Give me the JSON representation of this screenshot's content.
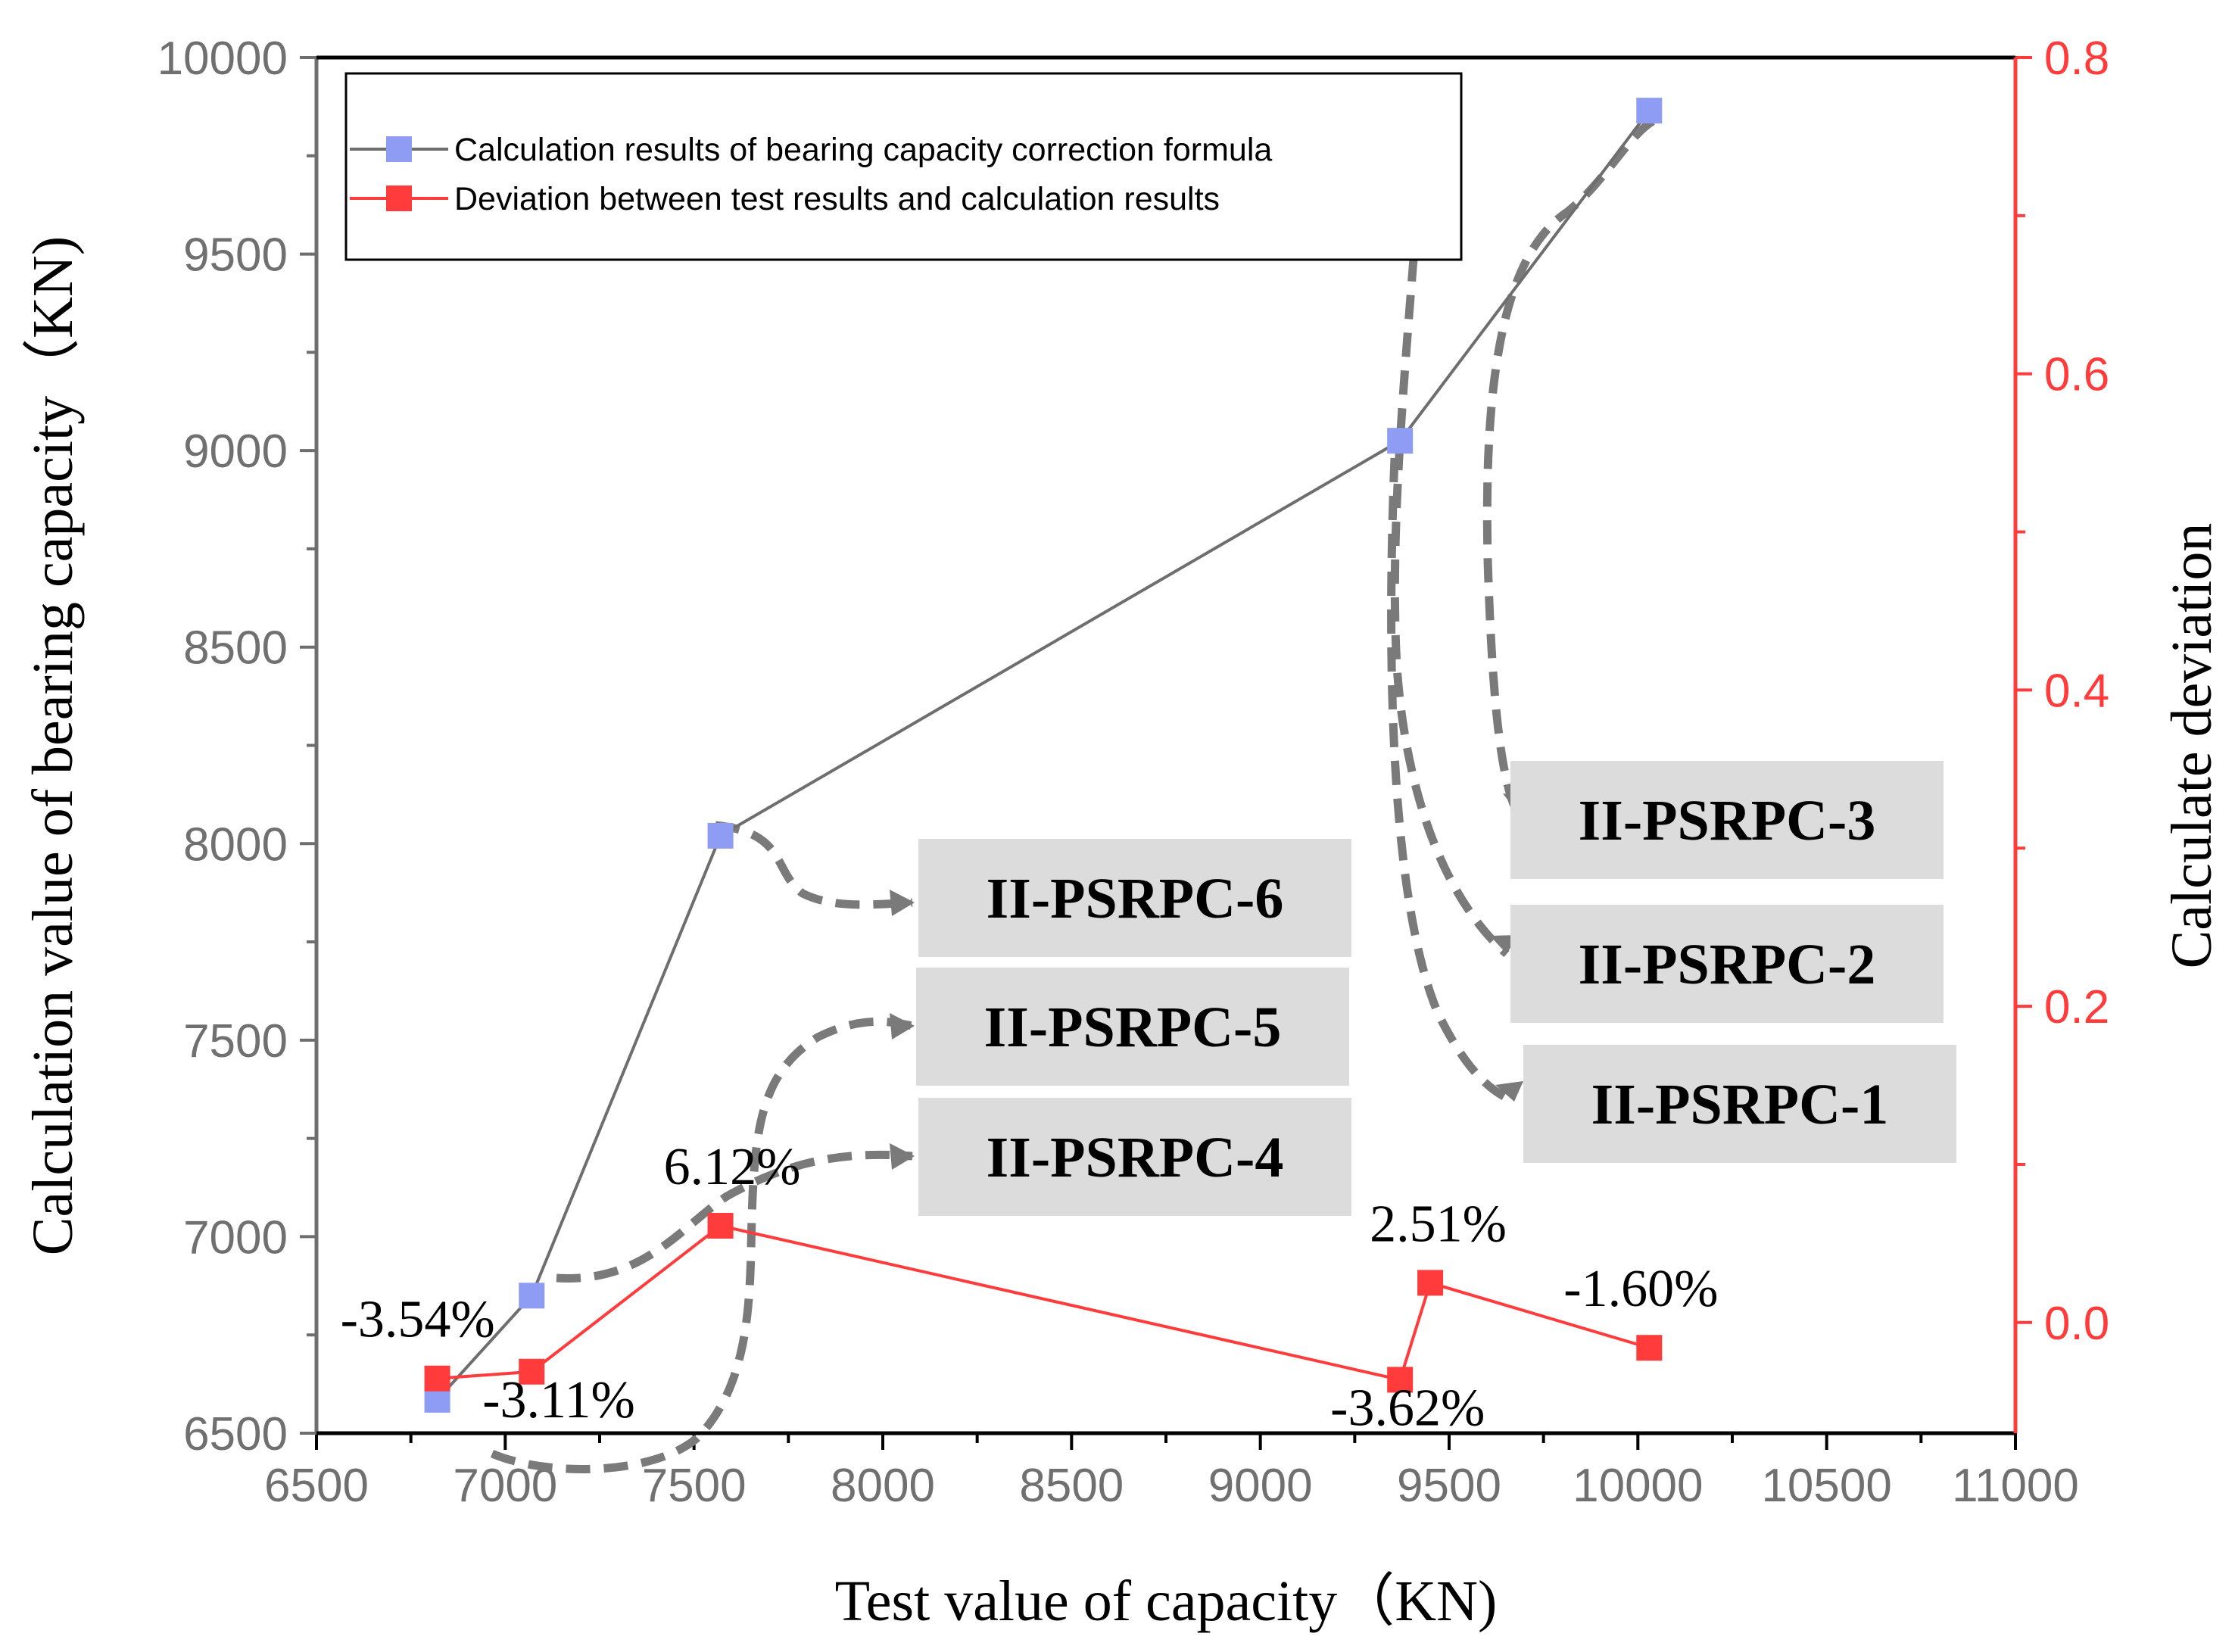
{
  "chart_data": {
    "type": "line",
    "xlabel": "Test value of capacity（KN)",
    "ylabel": "Calculation value of bearing capacity（KN)",
    "y2label": "Calculate deviation",
    "xlim": [
      6500,
      11000
    ],
    "ylim": [
      6500,
      10000
    ],
    "y2lim": [
      -0.07,
      0.8
    ],
    "x_ticks": [
      "6500",
      "7000",
      "7500",
      "8000",
      "8500",
      "9000",
      "9500",
      "10000",
      "10500",
      "11000"
    ],
    "y_ticks": [
      "6500",
      "7000",
      "7500",
      "8000",
      "8500",
      "9000",
      "9500",
      "10000"
    ],
    "y2_ticks": [
      "0.0",
      "0.2",
      "0.4",
      "0.6",
      "0.8"
    ],
    "legend_position": "top-left",
    "series": [
      {
        "name": "Calculation results of bearing capacity correction formula",
        "axis": "left",
        "color": "#6e6e6e",
        "marker_color": "#8f9cf3",
        "x": [
          6820,
          7070,
          7570,
          9370,
          10030
        ],
        "y": [
          6585,
          6850,
          8020,
          9025,
          9865
        ]
      },
      {
        "name": "Deviation between test results and calculation results",
        "axis": "right",
        "color": "#ff3b3b",
        "marker_color": "#ff3b3b",
        "x": [
          6820,
          7070,
          7570,
          9370,
          9450,
          10030
        ],
        "y": [
          -0.0354,
          -0.0311,
          0.0612,
          -0.0362,
          0.0251,
          -0.016
        ],
        "labels": [
          "-3.54%",
          "-3.11%",
          "6.12%",
          "-3.62%",
          "2.51%",
          "-1.60%"
        ]
      }
    ],
    "callouts": [
      "II-PSRPC-1",
      "II-PSRPC-2",
      "II-PSRPC-3",
      "II-PSRPC-4",
      "II-PSRPC-5",
      "II-PSRPC-6"
    ]
  }
}
